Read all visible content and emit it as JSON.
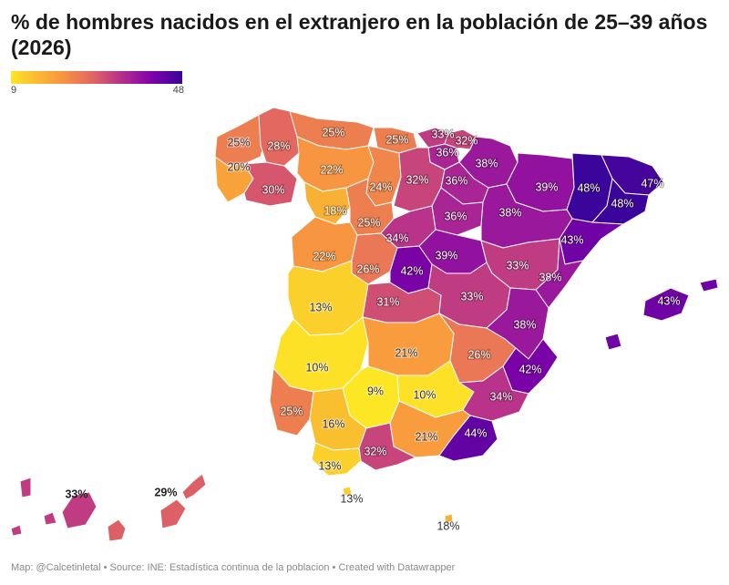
{
  "title": "% de hombres nacidos en el extranjero en la población de 25–39 años (2026)",
  "legend": {
    "min": "9",
    "max": "48"
  },
  "footer": "Map: @Calcetinletal • Source: INE: Estadística continua de la poblacion • Created with Datawrapper",
  "color_scale": {
    "low": "#fde725",
    "mid": "#e16462",
    "high": "#3b049a"
  },
  "provinces": [
    {
      "id": "a-coruna",
      "label": "25%",
      "value": 25
    },
    {
      "id": "lugo",
      "label": "28%",
      "value": 28
    },
    {
      "id": "asturias",
      "label": "25%",
      "value": 25
    },
    {
      "id": "cantabria",
      "label": "25%",
      "value": 25
    },
    {
      "id": "bizkaia",
      "label": "33%",
      "value": 33
    },
    {
      "id": "gipuzkoa",
      "label": "32%",
      "value": 32
    },
    {
      "id": "araba",
      "label": "36%",
      "value": 36
    },
    {
      "id": "navarra",
      "label": "38%",
      "value": 38
    },
    {
      "id": "pontevedra",
      "label": "20%",
      "value": 20
    },
    {
      "id": "ourense",
      "label": "30%",
      "value": 30
    },
    {
      "id": "leon",
      "label": "22%",
      "value": 22
    },
    {
      "id": "palencia",
      "label": "24%",
      "value": 24
    },
    {
      "id": "burgos",
      "label": "32%",
      "value": 32
    },
    {
      "id": "la-rioja",
      "label": "36%",
      "value": 36
    },
    {
      "id": "huesca",
      "label": "39%",
      "value": 39
    },
    {
      "id": "lleida",
      "label": "48%",
      "value": 48
    },
    {
      "id": "girona",
      "label": "47%",
      "value": 47
    },
    {
      "id": "barcelona",
      "label": "48%",
      "value": 48
    },
    {
      "id": "zamora",
      "label": "18%",
      "value": 18
    },
    {
      "id": "valladolid",
      "label": "25%",
      "value": 25
    },
    {
      "id": "soria",
      "label": "36%",
      "value": 36
    },
    {
      "id": "zaragoza",
      "label": "38%",
      "value": 38
    },
    {
      "id": "tarragona",
      "label": "43%",
      "value": 43
    },
    {
      "id": "segovia",
      "label": "34%",
      "value": 34
    },
    {
      "id": "salamanca",
      "label": "22%",
      "value": 22
    },
    {
      "id": "avila",
      "label": "26%",
      "value": 26
    },
    {
      "id": "madrid",
      "label": "42%",
      "value": 42
    },
    {
      "id": "guadalajara",
      "label": "39%",
      "value": 39
    },
    {
      "id": "teruel",
      "label": "33%",
      "value": 33
    },
    {
      "id": "castellon",
      "label": "38%",
      "value": 38
    },
    {
      "id": "caceres",
      "label": "13%",
      "value": 13
    },
    {
      "id": "toledo",
      "label": "31%",
      "value": 31
    },
    {
      "id": "cuenca",
      "label": "33%",
      "value": 33
    },
    {
      "id": "valencia",
      "label": "38%",
      "value": 38
    },
    {
      "id": "baleares",
      "label": "43%",
      "value": 43
    },
    {
      "id": "badajoz",
      "label": "10%",
      "value": 10
    },
    {
      "id": "ciudad-real",
      "label": "21%",
      "value": 21
    },
    {
      "id": "albacete",
      "label": "26%",
      "value": 26
    },
    {
      "id": "alicante",
      "label": "42%",
      "value": 42
    },
    {
      "id": "cordoba",
      "label": "9%",
      "value": 9
    },
    {
      "id": "jaen",
      "label": "10%",
      "value": 10
    },
    {
      "id": "murcia",
      "label": "34%",
      "value": 34
    },
    {
      "id": "huelva",
      "label": "25%",
      "value": 25
    },
    {
      "id": "sevilla",
      "label": "16%",
      "value": 16
    },
    {
      "id": "granada",
      "label": "21%",
      "value": 21
    },
    {
      "id": "almeria",
      "label": "44%",
      "value": 44
    },
    {
      "id": "malaga",
      "label": "32%",
      "value": 32
    },
    {
      "id": "cadiz",
      "label": "13%",
      "value": 13
    },
    {
      "id": "ceuta",
      "label": "13%",
      "value": 13
    },
    {
      "id": "melilla",
      "label": "18%",
      "value": 18
    },
    {
      "id": "santa-cruz-de-tenerife",
      "label": "33%",
      "value": 33
    },
    {
      "id": "las-palmas",
      "label": "29%",
      "value": 29
    }
  ]
}
